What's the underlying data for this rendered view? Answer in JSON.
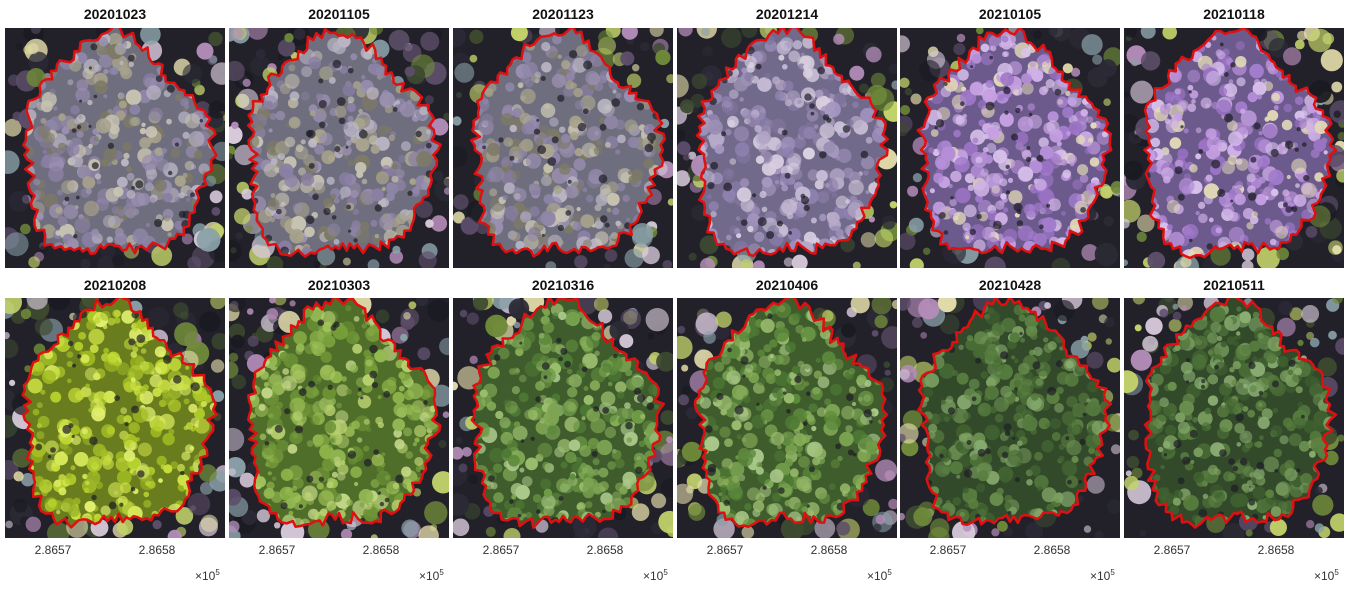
{
  "panels": [
    {
      "title": "20201023",
      "palette": "lilac_gray",
      "row": 0,
      "col": 0
    },
    {
      "title": "20201105",
      "palette": "lilac_gray",
      "row": 0,
      "col": 1
    },
    {
      "title": "20201123",
      "palette": "lilac_gray",
      "row": 0,
      "col": 2
    },
    {
      "title": "20201214",
      "palette": "lilac",
      "row": 0,
      "col": 3
    },
    {
      "title": "20210105",
      "palette": "violet",
      "row": 0,
      "col": 4
    },
    {
      "title": "20210118",
      "palette": "violet",
      "row": 0,
      "col": 5
    },
    {
      "title": "20210208",
      "palette": "yellow_green",
      "row": 1,
      "col": 0
    },
    {
      "title": "20210303",
      "palette": "light_green",
      "row": 1,
      "col": 1
    },
    {
      "title": "20210316",
      "palette": "green",
      "row": 1,
      "col": 2
    },
    {
      "title": "20210406",
      "palette": "green",
      "row": 1,
      "col": 3
    },
    {
      "title": "20210428",
      "palette": "dark_green",
      "row": 1,
      "col": 4
    },
    {
      "title": "20210511",
      "palette": "dark_green",
      "row": 1,
      "col": 5
    }
  ],
  "xaxis": {
    "ticks": [
      "2.8657",
      "2.8658"
    ],
    "multiplier_base": "×10",
    "multiplier_exp": "5"
  },
  "colors": {
    "outline": "#e01010",
    "background": "#ffffff"
  }
}
